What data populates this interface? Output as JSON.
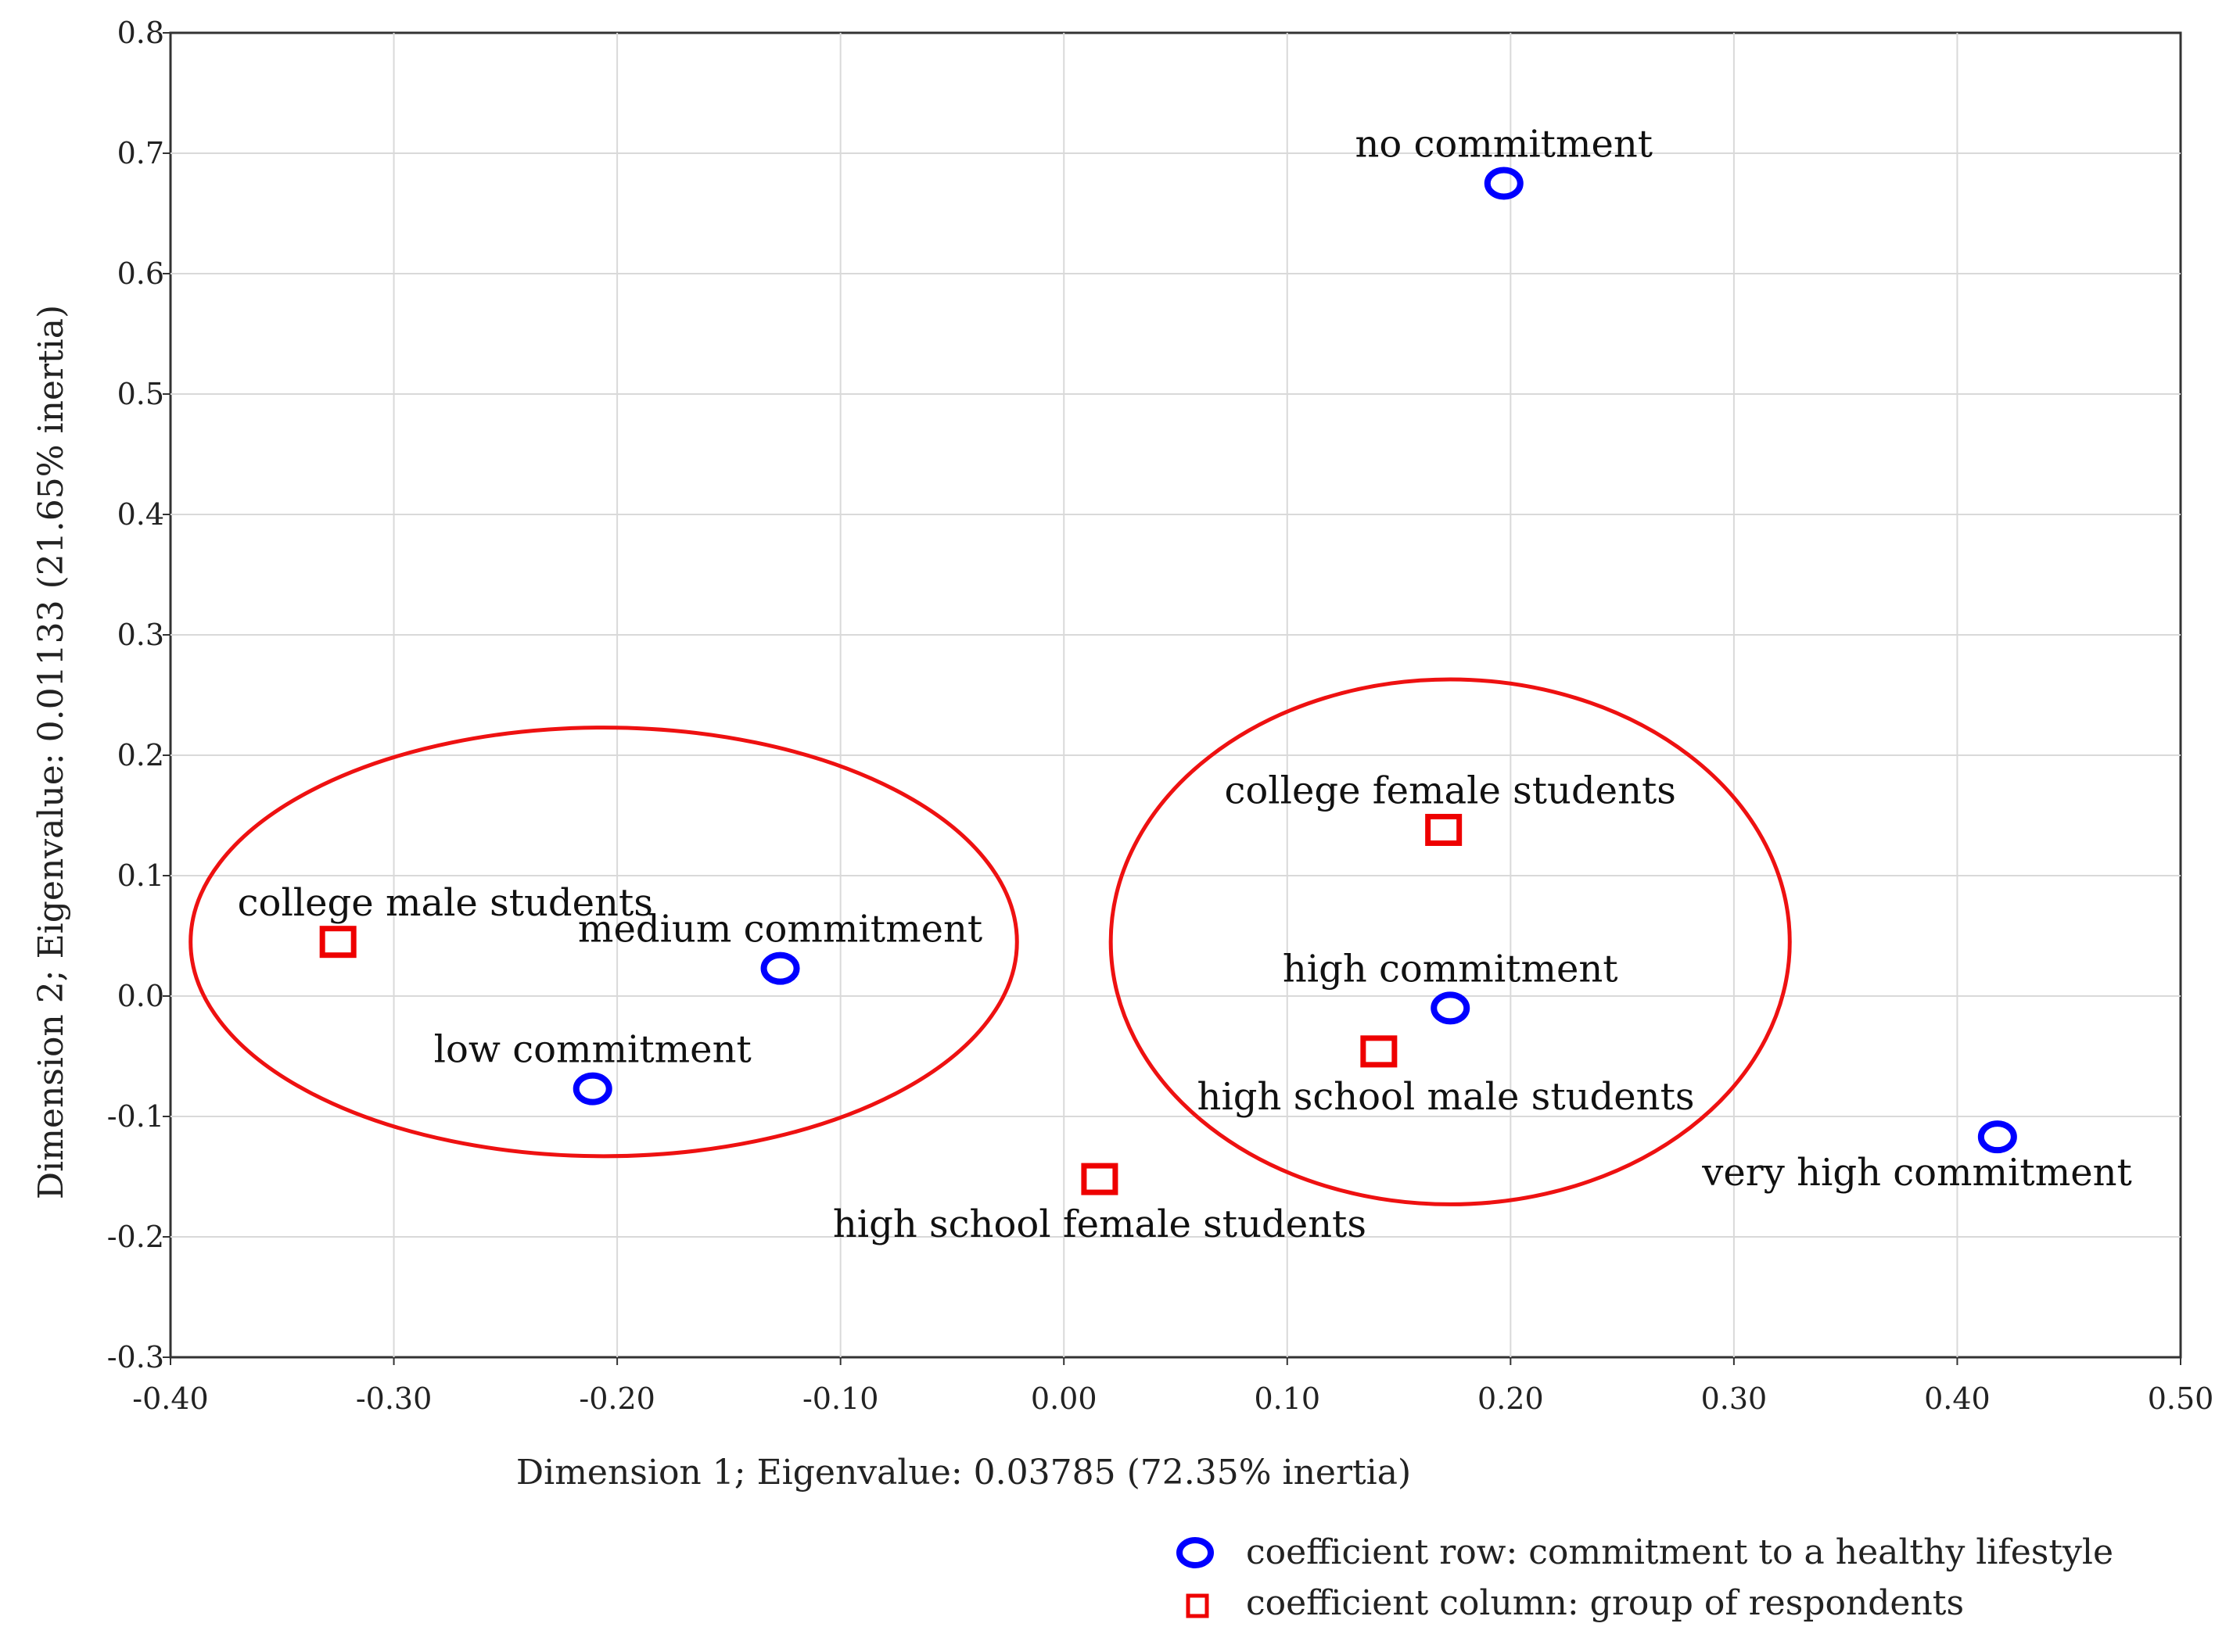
{
  "chart_data": {
    "type": "scatter",
    "xlabel": "Dimension 1; Eigenvalue: 0.03785 (72.35% inertia)",
    "ylabel": "Dimension 2; Eigenvalue: 0.01133 (21.65% inertia)",
    "xlim": [
      -0.4,
      0.5
    ],
    "ylim": [
      -0.3,
      0.8
    ],
    "xticks": [
      "-0.40",
      "-0.30",
      "-0.20",
      "-0.10",
      "0.00",
      "0.10",
      "0.20",
      "0.30",
      "0.40",
      "0.50"
    ],
    "yticks": [
      "-0.3",
      "-0.2",
      "-0.1",
      "0.0",
      "0.1",
      "0.2",
      "0.3",
      "0.4",
      "0.5",
      "0.6",
      "0.7",
      "0.8"
    ],
    "grid": true,
    "series": [
      {
        "name": "coefficient row: commitment to a healthy lifestyle",
        "marker": "circle",
        "color": "#0000ff",
        "points": [
          {
            "label": "no commitment",
            "x": 0.197,
            "y": 0.675,
            "label_anchor": "middle",
            "label_dx": 0.0,
            "label_dy": 0.022
          },
          {
            "label": "medium commitment",
            "x": -0.127,
            "y": 0.023,
            "label_anchor": "middle",
            "label_dx": 0.0,
            "label_dy": 0.022
          },
          {
            "label": "low commitment",
            "x": -0.211,
            "y": -0.077,
            "label_anchor": "middle",
            "label_dx": 0.0,
            "label_dy": 0.022
          },
          {
            "label": "high commitment",
            "x": 0.173,
            "y": -0.01,
            "label_anchor": "middle",
            "label_dx": 0.0,
            "label_dy": 0.022
          },
          {
            "label": "very high commitment",
            "x": 0.418,
            "y": -0.117,
            "label_anchor": "middle",
            "label_dx": -0.036,
            "label_dy": -0.04
          }
        ]
      },
      {
        "name": "coefficient column: group of respondents",
        "marker": "square",
        "color": "#ee0000",
        "points": [
          {
            "label": "college male students",
            "x": -0.325,
            "y": 0.045,
            "label_anchor": "start",
            "label_dx": -0.045,
            "label_dy": 0.022
          },
          {
            "label": "college female students",
            "x": 0.17,
            "y": 0.138,
            "label_anchor": "middle",
            "label_dx": 0.003,
            "label_dy": 0.022
          },
          {
            "label": "high school male students",
            "x": 0.141,
            "y": -0.046,
            "label_anchor": "middle",
            "label_dx": 0.03,
            "label_dy": -0.048
          },
          {
            "label": "high school female students",
            "x": 0.016,
            "y": -0.152,
            "label_anchor": "middle",
            "label_dx": 0.0,
            "label_dy": -0.048
          }
        ]
      }
    ],
    "groupings": [
      {
        "name": "left cluster",
        "cx": -0.206,
        "cy": 0.045,
        "rx": 0.185,
        "ry": 0.178,
        "color": "#ee1111"
      },
      {
        "name": "right cluster",
        "cx": 0.173,
        "cy": 0.045,
        "rx": 0.152,
        "ry": 0.218,
        "color": "#ee1111"
      }
    ],
    "legend_position": "bottom-right"
  }
}
